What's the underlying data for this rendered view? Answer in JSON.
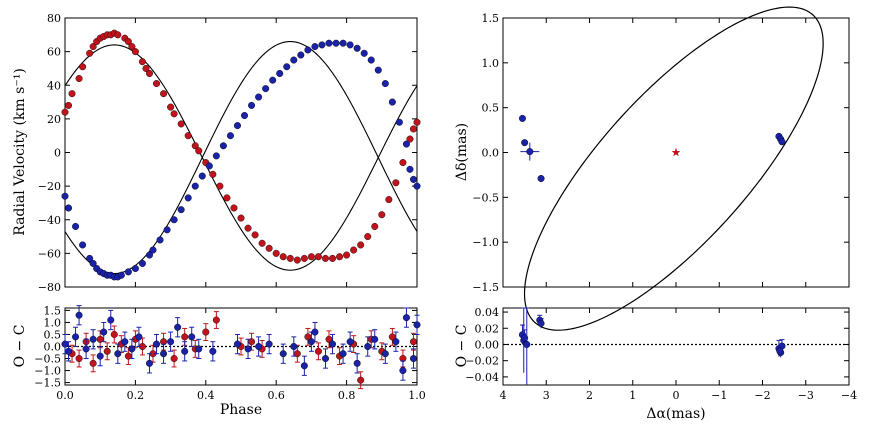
{
  "chart_data": [
    {
      "id": "rv",
      "type": "scatter",
      "xlabel": "",
      "ylabel": "Radial Velocity (km s⁻¹)",
      "xlim": [
        0.0,
        1.0
      ],
      "ylim": [
        -80,
        80
      ],
      "yticks": [
        -80,
        -60,
        -40,
        -20,
        0,
        20,
        40,
        60,
        80
      ],
      "xticks": [
        0.0,
        0.2,
        0.4,
        0.6,
        0.8,
        1.0
      ],
      "show_xtick_labels": false,
      "model": {
        "gamma": -3,
        "K_red": 67,
        "K_blue": 69,
        "phase_of_red_max": 0.14
      },
      "series": [
        {
          "name": "",
          "color": "#c0141c",
          "x": [
            0.0,
            0.01,
            0.02,
            0.04,
            0.05,
            0.07,
            0.08,
            0.09,
            0.1,
            0.11,
            0.12,
            0.13,
            0.14,
            0.15,
            0.17,
            0.18,
            0.19,
            0.2,
            0.22,
            0.23,
            0.24,
            0.26,
            0.28,
            0.3,
            0.31,
            0.33,
            0.35,
            0.37,
            0.38,
            0.4,
            0.42,
            0.44,
            0.46,
            0.48,
            0.5,
            0.52,
            0.54,
            0.56,
            0.58,
            0.6,
            0.62,
            0.64,
            0.66,
            0.68,
            0.7,
            0.72,
            0.74,
            0.76,
            0.78,
            0.8,
            0.82,
            0.84,
            0.86,
            0.88,
            0.9,
            0.92,
            0.94,
            0.96,
            0.98,
            0.99,
            1.0
          ],
          "y": [
            24,
            28,
            35,
            44,
            51,
            59,
            63,
            66,
            68,
            69,
            70,
            70,
            71,
            70,
            68,
            66,
            63,
            60,
            54,
            50,
            47,
            41,
            35,
            27,
            23,
            17,
            10,
            4,
            1,
            -6,
            -13,
            -20,
            -27,
            -33,
            -39,
            -45,
            -49,
            -54,
            -57,
            -60,
            -62,
            -63,
            -64,
            -63,
            -62,
            -62,
            -63,
            -63,
            -62,
            -61,
            -58,
            -55,
            -50,
            -44,
            -37,
            -28,
            -18,
            -6,
            8,
            14,
            18
          ]
        },
        {
          "name": "",
          "color": "#1a22a8",
          "x": [
            0.0,
            0.01,
            0.03,
            0.05,
            0.07,
            0.08,
            0.09,
            0.1,
            0.11,
            0.12,
            0.13,
            0.14,
            0.15,
            0.16,
            0.18,
            0.2,
            0.22,
            0.24,
            0.25,
            0.27,
            0.29,
            0.31,
            0.33,
            0.35,
            0.37,
            0.39,
            0.41,
            0.43,
            0.45,
            0.47,
            0.49,
            0.51,
            0.53,
            0.55,
            0.57,
            0.59,
            0.61,
            0.63,
            0.65,
            0.67,
            0.69,
            0.71,
            0.73,
            0.75,
            0.77,
            0.79,
            0.81,
            0.83,
            0.85,
            0.87,
            0.89,
            0.91,
            0.93,
            0.95,
            0.97,
            0.98,
            0.99,
            1.0
          ],
          "y": [
            -26,
            -33,
            -44,
            -55,
            -63,
            -66,
            -69,
            -71,
            -72,
            -73,
            -73,
            -74,
            -74,
            -73,
            -71,
            -69,
            -66,
            -61,
            -58,
            -52,
            -46,
            -40,
            -34,
            -27,
            -20,
            -14,
            -8,
            -2,
            4,
            10,
            16,
            22,
            28,
            33,
            38,
            43,
            47,
            51,
            55,
            58,
            61,
            63,
            64,
            65,
            65,
            65,
            64,
            62,
            59,
            55,
            49,
            41,
            30,
            18,
            5,
            -10,
            -16,
            -20
          ]
        }
      ]
    },
    {
      "id": "rv_resid",
      "type": "scatter",
      "xlabel": "Phase",
      "ylabel": "O − C",
      "xlim": [
        0.0,
        1.0
      ],
      "ylim": [
        -1.6,
        1.6
      ],
      "yticks": [
        -1.5,
        -1.0,
        -0.5,
        0.0,
        0.5,
        1.0,
        1.5
      ],
      "ytick_labels": [
        "−1.5",
        "−1.0",
        "−0.5",
        "0.0",
        "0.5",
        "1.0",
        "1.5"
      ],
      "xticks": [
        0.0,
        0.2,
        0.4,
        0.6,
        0.8,
        1.0
      ],
      "xtick_labels": [
        "0.0",
        "0.2",
        "0.4",
        "0.6",
        "0.8",
        "1.0"
      ],
      "series": [
        {
          "name": "",
          "color": "#c0141c",
          "err": 0.35,
          "x": [
            0.02,
            0.04,
            0.06,
            0.08,
            0.1,
            0.12,
            0.14,
            0.16,
            0.18,
            0.2,
            0.22,
            0.25,
            0.28,
            0.31,
            0.34,
            0.37,
            0.4,
            0.43,
            0.5,
            0.53,
            0.56,
            0.66,
            0.69,
            0.72,
            0.75,
            0.78,
            0.82,
            0.84,
            0.87,
            0.9,
            0.93,
            0.96,
            0.99
          ],
          "y": [
            -0.3,
            -0.5,
            0.2,
            -0.7,
            0.3,
            -0.2,
            0.5,
            0.1,
            -0.4,
            0.3,
            0.0,
            -0.3,
            0.2,
            -0.5,
            0.4,
            -0.1,
            0.6,
            1.1,
            0.0,
            0.2,
            -0.1,
            -0.3,
            0.4,
            -0.2,
            0.3,
            -0.4,
            0.1,
            -1.4,
            0.3,
            -0.2,
            0.4,
            -0.5,
            0.2
          ]
        },
        {
          "name": "",
          "color": "#1a22a8",
          "err": 0.4,
          "x": [
            0.0,
            0.01,
            0.03,
            0.04,
            0.06,
            0.08,
            0.1,
            0.11,
            0.13,
            0.15,
            0.17,
            0.19,
            0.21,
            0.24,
            0.26,
            0.28,
            0.3,
            0.32,
            0.34,
            0.36,
            0.38,
            0.42,
            0.49,
            0.52,
            0.55,
            0.58,
            0.62,
            0.65,
            0.68,
            0.7,
            0.71,
            0.74,
            0.76,
            0.79,
            0.81,
            0.83,
            0.86,
            0.88,
            0.91,
            0.94,
            0.96,
            0.97,
            0.99,
            1.0
          ],
          "y": [
            0.1,
            -0.2,
            0.4,
            1.3,
            -0.1,
            0.3,
            -0.4,
            0.6,
            1.1,
            -0.3,
            0.2,
            -0.1,
            0.4,
            -0.7,
            0.1,
            -0.3,
            0.2,
            0.8,
            -0.2,
            0.4,
            -0.1,
            -0.2,
            0.1,
            -0.1,
            0.0,
            0.1,
            -0.3,
            0.0,
            -0.8,
            0.2,
            0.6,
            -0.5,
            0.1,
            -0.3,
            0.2,
            -0.7,
            0.0,
            0.3,
            -0.3,
            0.2,
            -1.0,
            1.2,
            -0.5,
            0.9
          ]
        }
      ]
    },
    {
      "id": "orbit",
      "type": "scatter",
      "xlabel": "",
      "ylabel": "Δδ(mas)",
      "xlim": [
        4,
        -4
      ],
      "ylim": [
        -1.5,
        1.5
      ],
      "yticks": [
        -1.5,
        -1.0,
        -0.5,
        0.0,
        0.5,
        1.0,
        1.5
      ],
      "ytick_labels": [
        "−1.5",
        "−1.0",
        "−0.5",
        "0.0",
        "0.5",
        "1.0",
        "1.5"
      ],
      "xticks": [
        4,
        3,
        2,
        1,
        0,
        -1,
        -2,
        -3,
        -4
      ],
      "show_xtick_labels": false,
      "ellipse": {
        "center": [
          0.05,
          -0.18
        ],
        "a": 3.75,
        "b": 1.05,
        "angle_deg": -24
      },
      "primary": {
        "x": 0.0,
        "y": 0.0,
        "color": "#c0141c",
        "marker": "star"
      },
      "series": [
        {
          "name": "",
          "color": "#1a22a8",
          "x": [
            3.55,
            3.5,
            3.38,
            3.12,
            -2.38,
            -2.42,
            -2.45
          ],
          "y": [
            0.38,
            0.11,
            0.01,
            -0.29,
            0.18,
            0.15,
            0.12
          ],
          "xerr": [
            0.0,
            0.0,
            0.22,
            0.0,
            0.0,
            0.0,
            0.0
          ],
          "yerr": [
            0.0,
            0.0,
            0.1,
            0.0,
            0.0,
            0.0,
            0.0
          ]
        }
      ]
    },
    {
      "id": "orbit_resid",
      "type": "scatter",
      "xlabel": "Δα(mas)",
      "ylabel": "O − C",
      "xlim": [
        4,
        -4
      ],
      "ylim": [
        -0.05,
        0.045
      ],
      "yticks": [
        -0.04,
        -0.02,
        0.0,
        0.02,
        0.04
      ],
      "ytick_labels": [
        "−0.04",
        "−0.02",
        "0.00",
        "0.02",
        "0.04"
      ],
      "xticks": [
        4,
        3,
        2,
        1,
        0,
        -1,
        -2,
        -3,
        -4
      ],
      "xtick_labels": [
        "4",
        "3",
        "2",
        "1",
        "0",
        "−1",
        "−2",
        "−3",
        "−4"
      ],
      "series": [
        {
          "name": "",
          "color": "#1a22a8",
          "x": [
            3.55,
            3.52,
            3.5,
            3.45,
            3.15,
            3.12,
            -2.38,
            -2.42,
            -2.45,
            -2.4
          ],
          "y": [
            0.012,
            0.005,
            0.008,
            0.0,
            0.03,
            0.026,
            -0.005,
            -0.01,
            -0.002,
            -0.008
          ],
          "yerr": [
            0.012,
            0.04,
            0.01,
            0.06,
            0.006,
            0.006,
            0.01,
            0.006,
            0.008,
            0.006
          ]
        }
      ]
    }
  ]
}
